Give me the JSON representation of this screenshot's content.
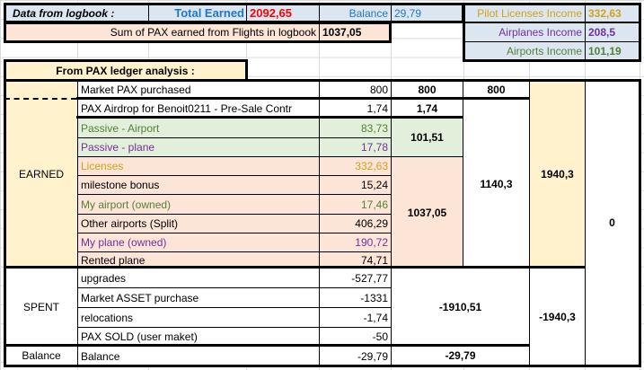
{
  "logbook": {
    "title": "Data from logbook :",
    "total_earned_label": "Total Earned",
    "total_earned": "2092,65",
    "balance_label": "Balance",
    "balance": "29,79",
    "sum_label": "Sum of PAX earned from Flights in logbook",
    "sum_value": "1037,05"
  },
  "income": {
    "pilot_label": "Pilot Licenses Income",
    "pilot": "332,63",
    "airplanes_label": "Airplanes Income",
    "airplanes": "208,5",
    "airports_label": "Airports Income",
    "airports": "101,19"
  },
  "ledger": {
    "title": "From PAX ledger analysis  :",
    "earned_label": "EARNED",
    "spent_label": "SPENT",
    "balance_label": "Balance",
    "rows": [
      {
        "label": "Market PAX purchased",
        "value": "800"
      },
      {
        "label": "PAX Airdrop for Benoit0211 - Pre-Sale Contr",
        "value": "1,74"
      },
      {
        "label": "Passive - Airport",
        "value": "83,73"
      },
      {
        "label": "Passive - plane",
        "value": "17,78"
      },
      {
        "label": "Licenses",
        "value": "332,63"
      },
      {
        "label": "milestone bonus",
        "value": "15,24"
      },
      {
        "label": "My airport (owned)",
        "value": "17,46"
      },
      {
        "label": "Other airports (Split)",
        "value": "406,29"
      },
      {
        "label": "My plane (owned)",
        "value": "190,72"
      },
      {
        "label": "Rented plane",
        "value": "74,71"
      },
      {
        "label": "upgrades",
        "value": "-527,77"
      },
      {
        "label": "Market ASSET purchase",
        "value": "-1331"
      },
      {
        "label": "relocations",
        "value": "-1,74"
      },
      {
        "label": "PAX SOLD (user maket)",
        "value": "-50"
      },
      {
        "label": "Balance",
        "value": "-29,79"
      }
    ],
    "subtotals": {
      "market": "800",
      "market_e": "800",
      "airdrop": "1,74",
      "passive": "101,51",
      "flights": "1037,05",
      "earned_ex_market": "1140,3",
      "earned_total": "1940,3",
      "spent": "-1910,51",
      "spent_total": "-1940,3",
      "balance": "-29,79",
      "net": "0"
    }
  },
  "colors": {
    "blue": "#1f77c9",
    "red": "#ff0000",
    "gold": "#d4a017",
    "purple": "#7030a0",
    "green": "#548235"
  }
}
